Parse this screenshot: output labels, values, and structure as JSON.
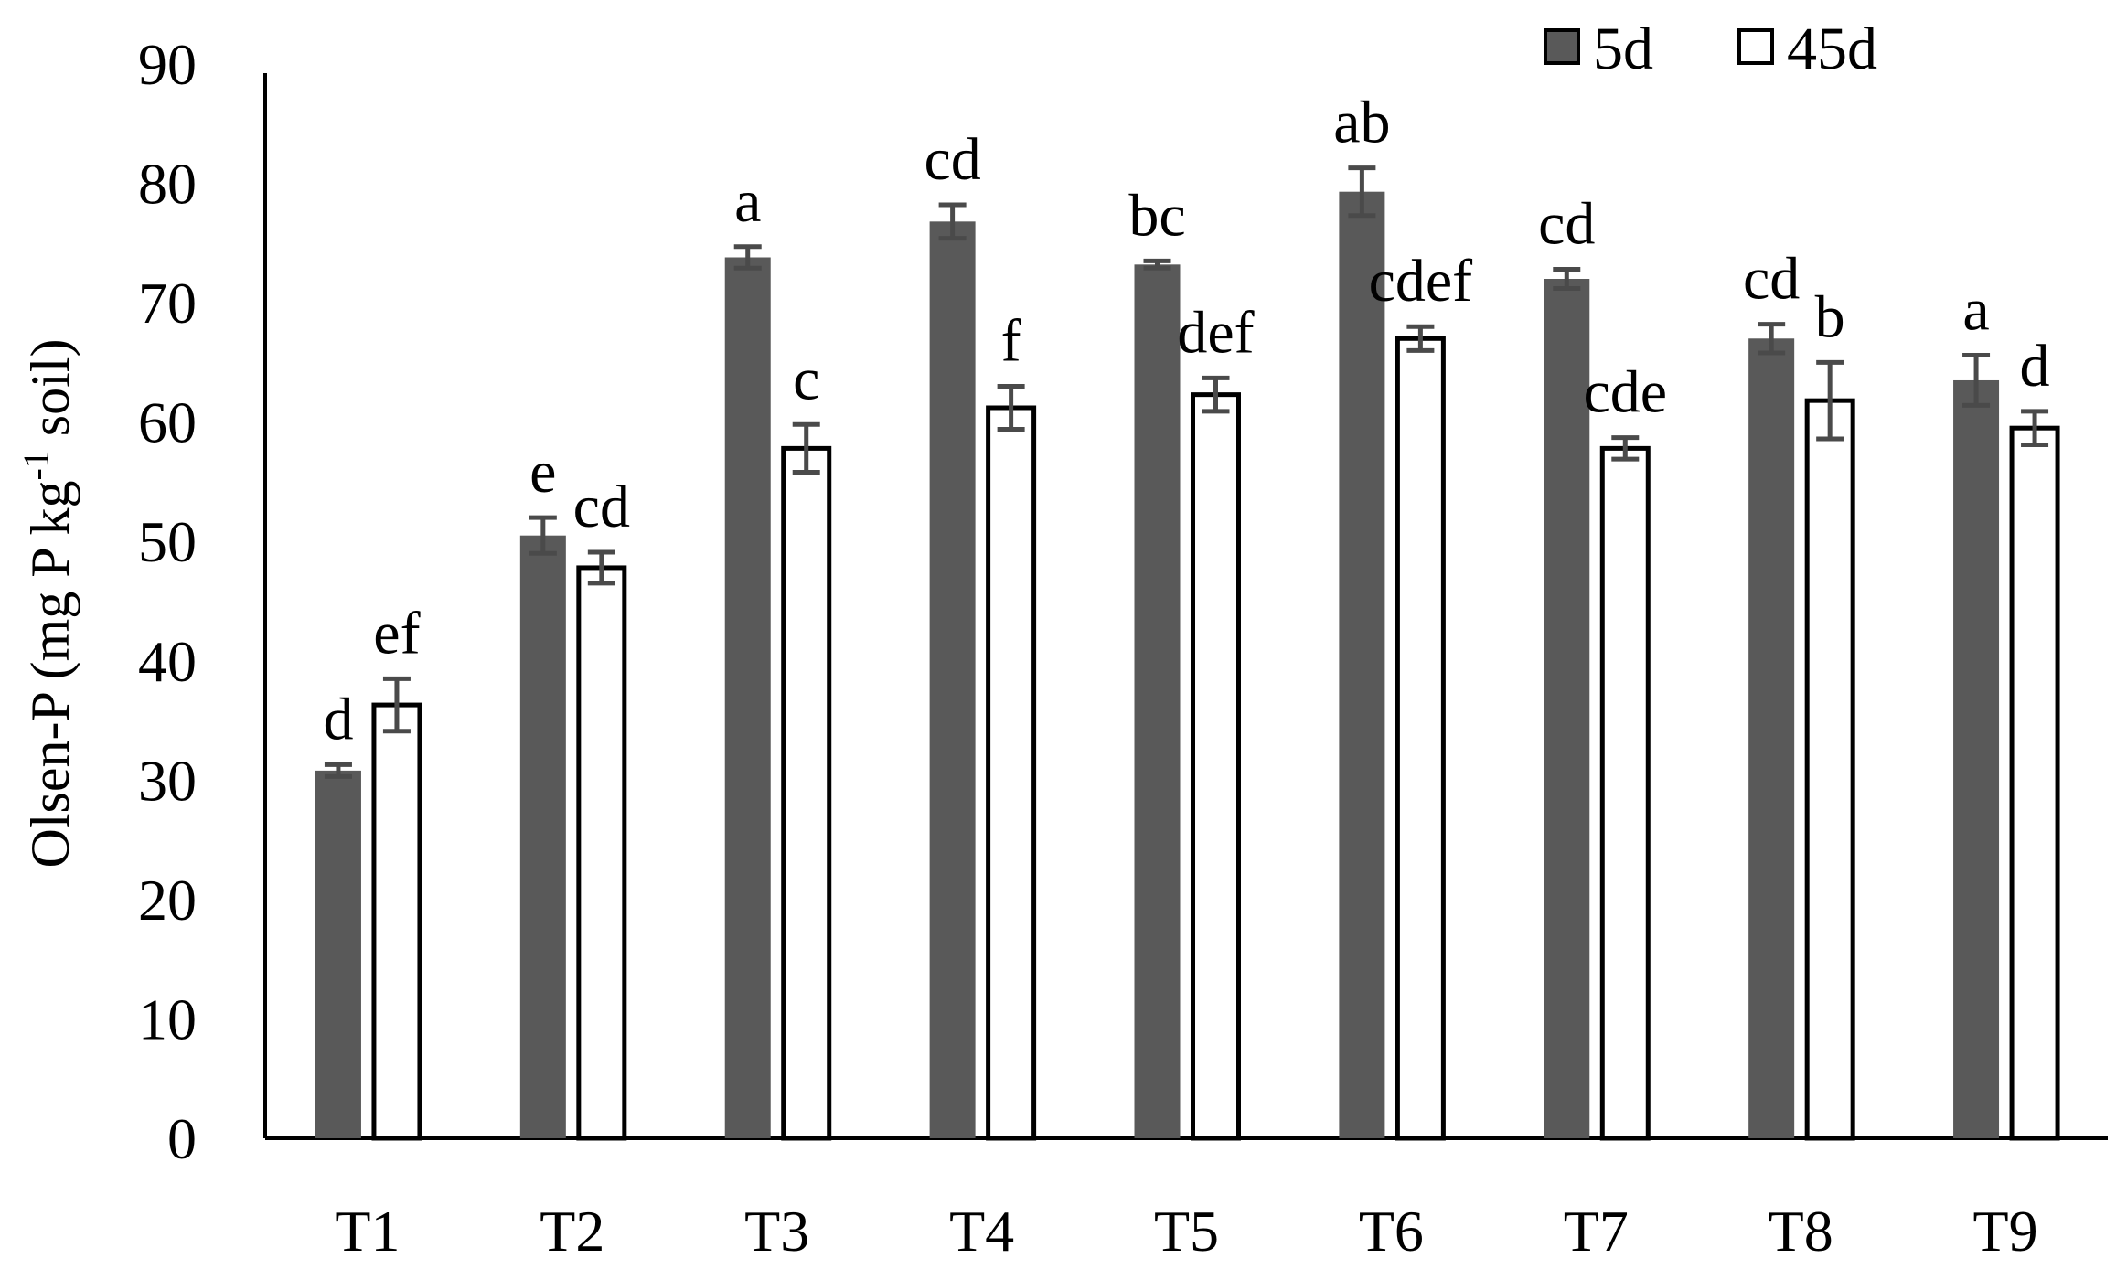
{
  "chart_data": {
    "type": "bar",
    "categories": [
      "T1",
      "T2",
      "T3",
      "T4",
      "T5",
      "T6",
      "T7",
      "T8",
      "T9"
    ],
    "series": [
      {
        "name": "5d",
        "values": [
          30.8,
          50.5,
          73.8,
          76.8,
          73.2,
          79.3,
          72.0,
          67.0,
          63.5
        ],
        "errors": [
          0.5,
          1.5,
          0.9,
          1.4,
          0.3,
          2.0,
          0.8,
          1.2,
          2.1
        ],
        "letters": [
          "d",
          "e",
          "a",
          "cd",
          "bc",
          "ab",
          "cd",
          "cd",
          "a"
        ]
      },
      {
        "name": "45d",
        "values": [
          36.3,
          47.8,
          57.8,
          61.2,
          62.3,
          67.0,
          57.8,
          61.8,
          59.5
        ],
        "errors": [
          2.2,
          1.3,
          2.0,
          1.8,
          1.4,
          1.0,
          0.9,
          3.2,
          1.4
        ],
        "letters": [
          "ef",
          "cd",
          "c",
          "f",
          "def",
          "cdef",
          "cde",
          "b",
          "d"
        ]
      }
    ],
    "ylim": [
      0,
      90
    ],
    "yticks": [
      "0",
      "10",
      "20",
      "30",
      "40",
      "50",
      "60",
      "70",
      "80",
      "90"
    ],
    "ylabel": {
      "prefix": "Olsen-P (mg P kg",
      "superscript": "-1",
      "suffix": " soil)"
    },
    "xlabel": "",
    "legend_position": "top-right",
    "grid": false
  },
  "colors": {
    "series_5d": "#595959",
    "series_45d": "#ffffff",
    "outline": "#000000",
    "error_bar": "#4a4a4a"
  }
}
